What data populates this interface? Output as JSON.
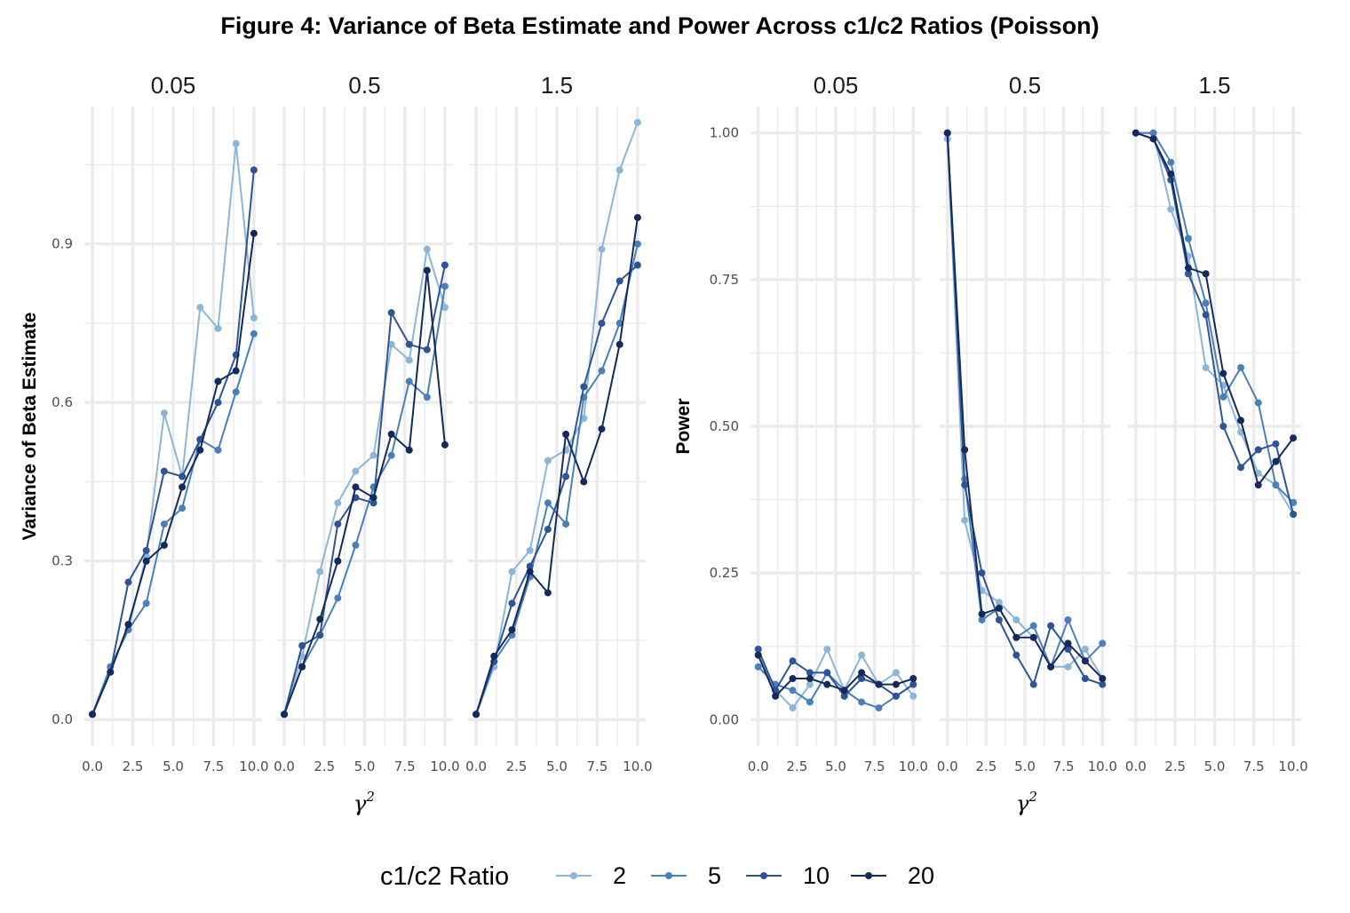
{
  "figure_title": "Figure 4: Variance of Beta Estimate and Power Across c1/c2 Ratios (Poisson)",
  "legend": {
    "title": "c1/c2 Ratio",
    "placement": "bottom"
  },
  "colors": {
    "2": "#8db6d6",
    "5": "#4a7fba",
    "10": "#2f5496",
    "20": "#142a5c"
  },
  "chart_data": [
    {
      "type": "line",
      "ylabel": "Variance of Beta Estimate",
      "xlabel": "γ2",
      "ylim": [
        -0.05,
        1.16
      ],
      "yticks": [
        0.0,
        0.3,
        0.6,
        0.9
      ],
      "ytick_labels": [
        "0.0",
        "0.3",
        "0.6",
        "0.9"
      ],
      "xlim": [
        -0.5,
        10.5
      ],
      "xticks": [
        0,
        2.5,
        5,
        7.5,
        10
      ],
      "xtick_labels": [
        "0.0",
        "2.5",
        "5.0",
        "7.5",
        "10.0"
      ],
      "grid": true,
      "x": [
        0,
        1.111,
        2.222,
        3.333,
        4.444,
        5.556,
        6.667,
        7.778,
        8.889,
        10
      ],
      "facets": [
        {
          "label": "0.05",
          "series": [
            {
              "name": "2",
              "values": [
                0.01,
                0.1,
                0.17,
                0.31,
                0.58,
                0.46,
                0.78,
                0.74,
                1.09,
                0.76
              ]
            },
            {
              "name": "5",
              "values": [
                0.01,
                0.1,
                0.17,
                0.22,
                0.37,
                0.4,
                0.53,
                0.51,
                0.62,
                0.73
              ]
            },
            {
              "name": "10",
              "values": [
                0.01,
                0.09,
                0.26,
                0.32,
                0.47,
                0.46,
                0.53,
                0.6,
                0.69,
                1.04
              ]
            },
            {
              "name": "20",
              "values": [
                0.01,
                0.09,
                0.18,
                0.3,
                0.33,
                0.44,
                0.51,
                0.64,
                0.66,
                0.92
              ]
            }
          ]
        },
        {
          "label": "0.5",
          "series": [
            {
              "name": "2",
              "values": [
                0.01,
                0.12,
                0.28,
                0.41,
                0.47,
                0.5,
                0.71,
                0.68,
                0.89,
                0.78
              ]
            },
            {
              "name": "5",
              "values": [
                0.01,
                0.1,
                0.16,
                0.23,
                0.33,
                0.44,
                0.5,
                0.64,
                0.61,
                0.82
              ]
            },
            {
              "name": "10",
              "values": [
                0.01,
                0.14,
                0.16,
                0.37,
                0.42,
                0.41,
                0.77,
                0.71,
                0.7,
                0.86
              ]
            },
            {
              "name": "20",
              "values": [
                0.01,
                0.1,
                0.19,
                0.3,
                0.44,
                0.42,
                0.54,
                0.51,
                0.85,
                0.52
              ]
            }
          ]
        },
        {
          "label": "1.5",
          "series": [
            {
              "name": "2",
              "values": [
                0.01,
                0.1,
                0.28,
                0.32,
                0.49,
                0.51,
                0.57,
                0.89,
                1.04,
                1.13
              ]
            },
            {
              "name": "5",
              "values": [
                0.01,
                0.11,
                0.16,
                0.27,
                0.41,
                0.37,
                0.61,
                0.66,
                0.75,
                0.9
              ]
            },
            {
              "name": "10",
              "values": [
                0.01,
                0.11,
                0.22,
                0.29,
                0.36,
                0.46,
                0.63,
                0.75,
                0.83,
                0.86
              ]
            },
            {
              "name": "20",
              "values": [
                0.01,
                0.12,
                0.17,
                0.28,
                0.24,
                0.54,
                0.45,
                0.55,
                0.71,
                0.95
              ]
            }
          ]
        }
      ]
    },
    {
      "type": "line",
      "ylabel": "Power",
      "xlabel": "γ2",
      "ylim": [
        -0.045,
        1.045
      ],
      "yticks": [
        0.0,
        0.25,
        0.5,
        0.75,
        1.0
      ],
      "ytick_labels": [
        "0.00",
        "0.25",
        "0.50",
        "0.75",
        "1.00"
      ],
      "xlim": [
        -0.5,
        10.5
      ],
      "xticks": [
        0,
        2.5,
        5,
        7.5,
        10
      ],
      "xtick_labels": [
        "0.0",
        "2.5",
        "5.0",
        "7.5",
        "10.0"
      ],
      "grid": true,
      "x": [
        0,
        1.111,
        2.222,
        3.333,
        4.444,
        5.556,
        6.667,
        7.778,
        8.889,
        10
      ],
      "facets": [
        {
          "label": "0.05",
          "series": [
            {
              "name": "2",
              "values": [
                0.11,
                0.05,
                0.02,
                0.06,
                0.12,
                0.05,
                0.11,
                0.06,
                0.08,
                0.04
              ]
            },
            {
              "name": "5",
              "values": [
                0.09,
                0.06,
                0.05,
                0.03,
                0.08,
                0.05,
                0.03,
                0.02,
                0.04,
                0.06
              ]
            },
            {
              "name": "10",
              "values": [
                0.12,
                0.05,
                0.1,
                0.08,
                0.08,
                0.04,
                0.07,
                0.06,
                0.04,
                0.06
              ]
            },
            {
              "name": "20",
              "values": [
                0.11,
                0.04,
                0.07,
                0.07,
                0.06,
                0.05,
                0.08,
                0.06,
                0.06,
                0.07
              ]
            }
          ]
        },
        {
          "label": "0.5",
          "series": [
            {
              "name": "2",
              "values": [
                0.99,
                0.34,
                0.22,
                0.2,
                0.17,
                0.14,
                0.09,
                0.09,
                0.12,
                0.07
              ]
            },
            {
              "name": "5",
              "values": [
                1.0,
                0.41,
                0.17,
                0.19,
                0.14,
                0.16,
                0.09,
                0.17,
                0.1,
                0.13
              ]
            },
            {
              "name": "10",
              "values": [
                1.0,
                0.4,
                0.25,
                0.17,
                0.11,
                0.06,
                0.16,
                0.12,
                0.07,
                0.06
              ]
            },
            {
              "name": "20",
              "values": [
                1.0,
                0.46,
                0.18,
                0.19,
                0.14,
                0.14,
                0.09,
                0.13,
                0.1,
                0.07
              ]
            }
          ]
        },
        {
          "label": "1.5",
          "series": [
            {
              "name": "2",
              "values": [
                1.0,
                1.0,
                0.87,
                0.79,
                0.6,
                0.57,
                0.49,
                0.42,
                0.4,
                0.35
              ]
            },
            {
              "name": "5",
              "values": [
                1.0,
                1.0,
                0.95,
                0.82,
                0.71,
                0.55,
                0.6,
                0.54,
                0.4,
                0.37
              ]
            },
            {
              "name": "10",
              "values": [
                1.0,
                0.99,
                0.92,
                0.76,
                0.69,
                0.5,
                0.43,
                0.46,
                0.47,
                0.35
              ]
            },
            {
              "name": "20",
              "values": [
                1.0,
                0.99,
                0.93,
                0.77,
                0.76,
                0.59,
                0.51,
                0.4,
                0.44,
                0.48
              ]
            }
          ]
        }
      ]
    }
  ]
}
